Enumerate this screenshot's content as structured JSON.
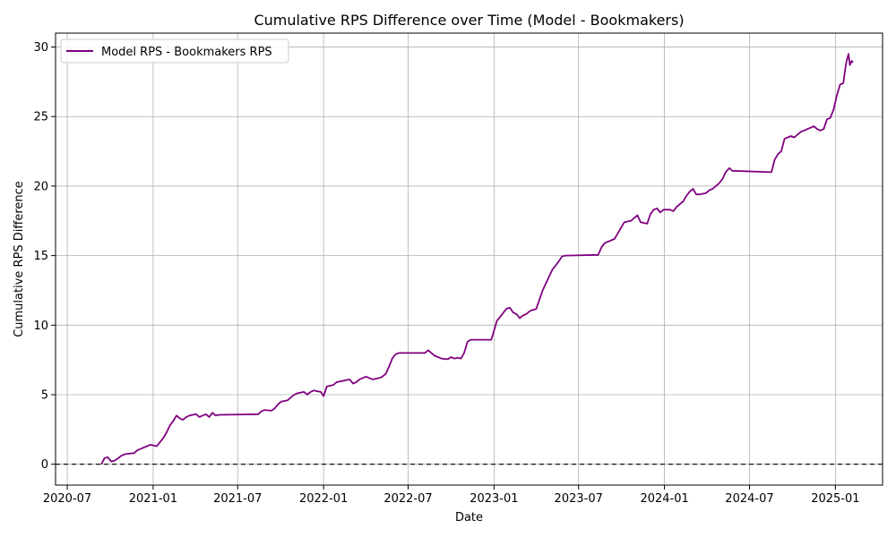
{
  "chart_data": {
    "type": "line",
    "title": "Cumulative RPS Difference over Time (Model - Bookmakers)",
    "xlabel": "Date",
    "ylabel": "Cumulative RPS Difference",
    "xlim": [
      "2020-06-06",
      "2025-04-12"
    ],
    "ylim": [
      -1.5,
      31
    ],
    "x_ticks": [
      "2020-07",
      "2021-01",
      "2021-07",
      "2022-01",
      "2022-07",
      "2023-01",
      "2023-07",
      "2024-01",
      "2024-07",
      "2025-01"
    ],
    "y_ticks": [
      0,
      5,
      10,
      15,
      20,
      25,
      30
    ],
    "grid": true,
    "legend_position": "upper left",
    "reference_line": {
      "y": 0,
      "style": "dashed",
      "color": "#000000"
    },
    "series": [
      {
        "name": "Model RPS - Bookmakers RPS",
        "color": "#800080",
        "points": [
          [
            "2020-09-12",
            0.0
          ],
          [
            "2020-09-19",
            0.45
          ],
          [
            "2020-09-26",
            0.5
          ],
          [
            "2020-10-03",
            0.2
          ],
          [
            "2020-10-10",
            0.25
          ],
          [
            "2020-10-17",
            0.4
          ],
          [
            "2020-10-24",
            0.6
          ],
          [
            "2020-10-31",
            0.7
          ],
          [
            "2020-11-07",
            0.75
          ],
          [
            "2020-11-21",
            0.8
          ],
          [
            "2020-11-28",
            1.0
          ],
          [
            "2020-12-05",
            1.1
          ],
          [
            "2020-12-12",
            1.2
          ],
          [
            "2020-12-19",
            1.3
          ],
          [
            "2020-12-26",
            1.4
          ],
          [
            "2021-01-02",
            1.35
          ],
          [
            "2021-01-09",
            1.3
          ],
          [
            "2021-01-16",
            1.6
          ],
          [
            "2021-01-23",
            1.9
          ],
          [
            "2021-01-30",
            2.3
          ],
          [
            "2021-02-06",
            2.8
          ],
          [
            "2021-02-13",
            3.1
          ],
          [
            "2021-02-20",
            3.5
          ],
          [
            "2021-02-27",
            3.3
          ],
          [
            "2021-03-06",
            3.2
          ],
          [
            "2021-03-13",
            3.4
          ],
          [
            "2021-03-20",
            3.5
          ],
          [
            "2021-04-03",
            3.6
          ],
          [
            "2021-04-10",
            3.4
          ],
          [
            "2021-04-17",
            3.5
          ],
          [
            "2021-04-24",
            3.6
          ],
          [
            "2021-05-01",
            3.4
          ],
          [
            "2021-05-08",
            3.7
          ],
          [
            "2021-05-15",
            3.5
          ],
          [
            "2021-05-22",
            3.55
          ],
          [
            "2021-08-14",
            3.6
          ],
          [
            "2021-08-21",
            3.8
          ],
          [
            "2021-08-28",
            3.9
          ],
          [
            "2021-09-11",
            3.85
          ],
          [
            "2021-09-18",
            4.0
          ],
          [
            "2021-09-25",
            4.3
          ],
          [
            "2021-10-02",
            4.5
          ],
          [
            "2021-10-16",
            4.6
          ],
          [
            "2021-10-23",
            4.8
          ],
          [
            "2021-10-30",
            5.0
          ],
          [
            "2021-11-06",
            5.1
          ],
          [
            "2021-11-20",
            5.2
          ],
          [
            "2021-11-27",
            5.0
          ],
          [
            "2021-12-04",
            5.2
          ],
          [
            "2021-12-11",
            5.3
          ],
          [
            "2021-12-18",
            5.25
          ],
          [
            "2021-12-26",
            5.2
          ],
          [
            "2022-01-01",
            4.9
          ],
          [
            "2022-01-08",
            5.6
          ],
          [
            "2022-01-22",
            5.7
          ],
          [
            "2022-01-29",
            5.9
          ],
          [
            "2022-02-12",
            6.0
          ],
          [
            "2022-02-26",
            6.1
          ],
          [
            "2022-03-05",
            5.8
          ],
          [
            "2022-03-12",
            5.9
          ],
          [
            "2022-03-19",
            6.1
          ],
          [
            "2022-04-02",
            6.3
          ],
          [
            "2022-04-09",
            6.2
          ],
          [
            "2022-04-16",
            6.1
          ],
          [
            "2022-04-30",
            6.2
          ],
          [
            "2022-05-07",
            6.3
          ],
          [
            "2022-05-14",
            6.5
          ],
          [
            "2022-05-21",
            7.0
          ],
          [
            "2022-05-28",
            7.6
          ],
          [
            "2022-06-04",
            7.9
          ],
          [
            "2022-06-11",
            8.0
          ],
          [
            "2022-08-06",
            8.0
          ],
          [
            "2022-08-13",
            8.2
          ],
          [
            "2022-08-20",
            8.0
          ],
          [
            "2022-08-27",
            7.8
          ],
          [
            "2022-09-03",
            7.7
          ],
          [
            "2022-09-10",
            7.6
          ],
          [
            "2022-09-24",
            7.55
          ],
          [
            "2022-10-01",
            7.7
          ],
          [
            "2022-10-08",
            7.6
          ],
          [
            "2022-10-15",
            7.65
          ],
          [
            "2022-10-22",
            7.6
          ],
          [
            "2022-10-29",
            8.0
          ],
          [
            "2022-11-05",
            8.8
          ],
          [
            "2022-11-12",
            8.95
          ],
          [
            "2022-12-26",
            8.95
          ],
          [
            "2022-12-31",
            9.5
          ],
          [
            "2023-01-07",
            10.3
          ],
          [
            "2023-01-14",
            10.6
          ],
          [
            "2023-01-21",
            10.9
          ],
          [
            "2023-01-28",
            11.2
          ],
          [
            "2023-02-04",
            11.25
          ],
          [
            "2023-02-11",
            10.9
          ],
          [
            "2023-02-18",
            10.8
          ],
          [
            "2023-02-25",
            10.5
          ],
          [
            "2023-03-04",
            10.7
          ],
          [
            "2023-03-11",
            10.8
          ],
          [
            "2023-03-18",
            11.0
          ],
          [
            "2023-03-25",
            11.1
          ],
          [
            "2023-04-01",
            11.15
          ],
          [
            "2023-04-08",
            11.8
          ],
          [
            "2023-04-15",
            12.5
          ],
          [
            "2023-04-22",
            13.0
          ],
          [
            "2023-04-29",
            13.5
          ],
          [
            "2023-05-06",
            14.0
          ],
          [
            "2023-05-13",
            14.3
          ],
          [
            "2023-05-20",
            14.6
          ],
          [
            "2023-05-27",
            14.95
          ],
          [
            "2023-06-03",
            15.0
          ],
          [
            "2023-08-12",
            15.05
          ],
          [
            "2023-08-19",
            15.6
          ],
          [
            "2023-08-26",
            15.9
          ],
          [
            "2023-09-02",
            16.0
          ],
          [
            "2023-09-16",
            16.2
          ],
          [
            "2023-09-23",
            16.6
          ],
          [
            "2023-09-30",
            17.0
          ],
          [
            "2023-10-07",
            17.4
          ],
          [
            "2023-10-21",
            17.5
          ],
          [
            "2023-10-28",
            17.7
          ],
          [
            "2023-11-04",
            17.9
          ],
          [
            "2023-11-11",
            17.4
          ],
          [
            "2023-11-25",
            17.3
          ],
          [
            "2023-12-02",
            18.0
          ],
          [
            "2023-12-09",
            18.3
          ],
          [
            "2023-12-16",
            18.4
          ],
          [
            "2023-12-23",
            18.1
          ],
          [
            "2023-12-30",
            18.3
          ],
          [
            "2024-01-13",
            18.3
          ],
          [
            "2024-01-20",
            18.2
          ],
          [
            "2024-01-27",
            18.5
          ],
          [
            "2024-02-03",
            18.7
          ],
          [
            "2024-02-10",
            18.9
          ],
          [
            "2024-02-17",
            19.3
          ],
          [
            "2024-02-24",
            19.6
          ],
          [
            "2024-03-02",
            19.8
          ],
          [
            "2024-03-09",
            19.4
          ],
          [
            "2024-03-16",
            19.4
          ],
          [
            "2024-03-30",
            19.5
          ],
          [
            "2024-04-06",
            19.7
          ],
          [
            "2024-04-13",
            19.8
          ],
          [
            "2024-04-20",
            20.0
          ],
          [
            "2024-04-27",
            20.2
          ],
          [
            "2024-05-04",
            20.5
          ],
          [
            "2024-05-11",
            21.0
          ],
          [
            "2024-05-19",
            21.3
          ],
          [
            "2024-05-25",
            21.1
          ],
          [
            "2024-08-17",
            21.0
          ],
          [
            "2024-08-24",
            21.9
          ],
          [
            "2024-08-31",
            22.3
          ],
          [
            "2024-09-07",
            22.5
          ],
          [
            "2024-09-14",
            23.4
          ],
          [
            "2024-09-21",
            23.5
          ],
          [
            "2024-09-28",
            23.6
          ],
          [
            "2024-10-05",
            23.5
          ],
          [
            "2024-10-12",
            23.7
          ],
          [
            "2024-10-19",
            23.9
          ],
          [
            "2024-10-26",
            24.0
          ],
          [
            "2024-11-02",
            24.1
          ],
          [
            "2024-11-09",
            24.2
          ],
          [
            "2024-11-16",
            24.3
          ],
          [
            "2024-11-23",
            24.1
          ],
          [
            "2024-11-30",
            24.0
          ],
          [
            "2024-12-07",
            24.1
          ],
          [
            "2024-12-14",
            24.8
          ],
          [
            "2024-12-21",
            24.9
          ],
          [
            "2024-12-28",
            25.5
          ],
          [
            "2025-01-04",
            26.5
          ],
          [
            "2025-01-11",
            27.3
          ],
          [
            "2025-01-18",
            27.4
          ],
          [
            "2025-01-22",
            28.4
          ],
          [
            "2025-01-25",
            29.0
          ],
          [
            "2025-01-29",
            29.5
          ],
          [
            "2025-02-01",
            28.7
          ],
          [
            "2025-02-05",
            29.0
          ],
          [
            "2025-02-08",
            28.9
          ]
        ]
      }
    ]
  }
}
